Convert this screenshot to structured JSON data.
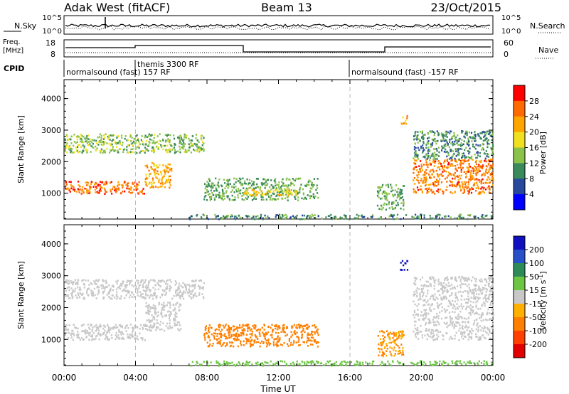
{
  "header": {
    "station": "Adak West (fitACF)",
    "beam": "Beam 13",
    "date": "23/Oct/2015"
  },
  "status_panels": {
    "nsky_label": "N.Sky",
    "nsky_ticks": [
      "10^5",
      "10^0"
    ],
    "nsearch_label": "N.Search",
    "nsearch_ticks": [
      "10^5",
      "10^0"
    ],
    "freq_label": "Freq.",
    "freq_unit": "[MHz]",
    "freq_ticks": [
      "18",
      "8"
    ],
    "nave_label": "Nave",
    "nave_ticks": [
      "60",
      "0"
    ],
    "cpid_label": "CPID",
    "cpid_segments": [
      {
        "label": "normalsound (fast) 157 RF",
        "start_hour": 0,
        "end_hour": 16
      },
      {
        "label": "themis 3300 RF",
        "start_hour": 4,
        "end_hour": 16
      },
      {
        "label": "normalsound (fast) -157 RF",
        "start_hour": 16,
        "end_hour": 24
      }
    ]
  },
  "axes": {
    "x_label": "Time UT",
    "x_ticks": [
      "00:00",
      "04:00",
      "08:00",
      "12:00",
      "16:00",
      "20:00",
      "00:00"
    ],
    "x_range_hours": [
      0,
      24
    ],
    "y_label": "Slant Range [km]",
    "y_ticks": [
      "1000",
      "2000",
      "3000",
      "4000"
    ],
    "y_range_km": [
      180,
      4600
    ],
    "dashed_markers_hours": [
      4,
      16
    ]
  },
  "power_colorbar": {
    "label": "Power [dB]",
    "ticks": [
      "4",
      "8",
      "12",
      "16",
      "20",
      "24",
      "28"
    ],
    "colors": [
      "#0000ff",
      "#28489c",
      "#3b8a5c",
      "#8bc34a",
      "#f0e020",
      "#ffa500",
      "#ff6a00",
      "#ff0000"
    ]
  },
  "velocity_colorbar": {
    "label": "Velocity [m s",
    "label_sup": "-1",
    "label_end": "]",
    "ticks": [
      "200",
      "100",
      "50",
      "15",
      "-15",
      "-50",
      "-100",
      "-200"
    ],
    "colors": [
      "#1010c0",
      "#2850c8",
      "#2e8b57",
      "#6cc644",
      "#c8c8c8",
      "#ffb000",
      "#ff7f00",
      "#ff4000",
      "#e00000"
    ]
  },
  "chart_data": [
    {
      "type": "heatmap",
      "title": "Power",
      "xlabel": "Time UT",
      "ylabel": "Slant Range [km]",
      "x_unit": "hours UT",
      "xlim": [
        0,
        24
      ],
      "ylim": [
        180,
        4600
      ],
      "colorbar_label": "Power [dB]",
      "echo_regions": [
        {
          "t_start": 0.0,
          "t_end": 4.5,
          "range_km": [
            1000,
            1400
          ],
          "power_db": 26
        },
        {
          "t_start": 4.5,
          "t_end": 6.0,
          "range_km": [
            1200,
            2000
          ],
          "power_db": 22
        },
        {
          "t_start": 0.0,
          "t_end": 7.8,
          "range_km": [
            2300,
            2900
          ],
          "power_db": 14
        },
        {
          "t_start": 7.8,
          "t_end": 14.2,
          "range_km": [
            800,
            1500
          ],
          "power_db": 12
        },
        {
          "t_start": 10.0,
          "t_end": 13.0,
          "range_km": [
            950,
            1150
          ],
          "power_db": 20
        },
        {
          "t_start": 17.5,
          "t_end": 19.0,
          "range_km": [
            500,
            1300
          ],
          "power_db": 12
        },
        {
          "t_start": 18.8,
          "t_end": 19.2,
          "range_km": [
            3200,
            3500
          ],
          "power_db": 22
        },
        {
          "t_start": 19.5,
          "t_end": 24.0,
          "range_km": [
            1000,
            2100
          ],
          "power_db": 25
        },
        {
          "t_start": 19.5,
          "t_end": 24.0,
          "range_km": [
            2100,
            3000
          ],
          "power_db": 10
        },
        {
          "t_start": 7.0,
          "t_end": 24.0,
          "range_km": [
            200,
            350
          ],
          "power_db": 10
        }
      ]
    },
    {
      "type": "heatmap",
      "title": "Velocity",
      "xlabel": "Time UT",
      "ylabel": "Slant Range [km]",
      "x_unit": "hours UT",
      "xlim": [
        0,
        24
      ],
      "ylim": [
        180,
        4600
      ],
      "colorbar_label": "Velocity [m s-1]",
      "echo_regions": [
        {
          "t_start": 0.0,
          "t_end": 4.5,
          "range_km": [
            1000,
            1500
          ],
          "velocity_ms": 0
        },
        {
          "t_start": 0.0,
          "t_end": 7.8,
          "range_km": [
            2300,
            2900
          ],
          "velocity_ms": 0
        },
        {
          "t_start": 4.5,
          "t_end": 6.5,
          "range_km": [
            1300,
            2200
          ],
          "velocity_ms": 0
        },
        {
          "t_start": 7.8,
          "t_end": 14.2,
          "range_km": [
            800,
            1500
          ],
          "velocity_ms": -40
        },
        {
          "t_start": 17.5,
          "t_end": 19.0,
          "range_km": [
            500,
            1300
          ],
          "velocity_ms": -30
        },
        {
          "t_start": 18.8,
          "t_end": 19.2,
          "range_km": [
            3200,
            3500
          ],
          "velocity_ms": 200
        },
        {
          "t_start": 19.5,
          "t_end": 24.0,
          "range_km": [
            1000,
            3000
          ],
          "velocity_ms": 0
        },
        {
          "t_start": 7.0,
          "t_end": 24.0,
          "range_km": [
            200,
            350
          ],
          "velocity_ms": 20
        }
      ]
    }
  ]
}
